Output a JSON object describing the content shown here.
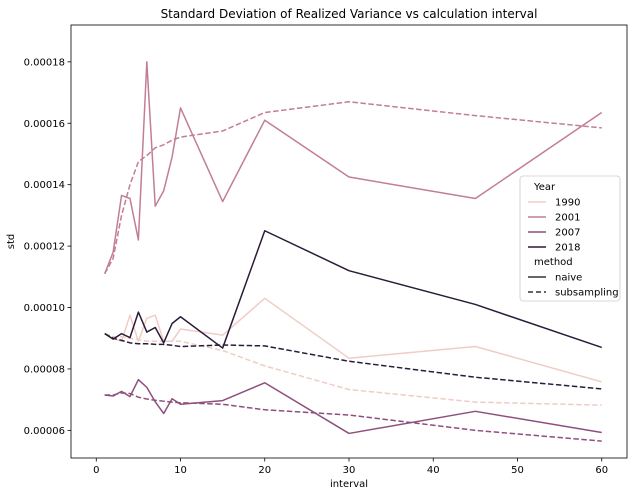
{
  "chart_data": {
    "type": "line",
    "title": "Standard Deviation of Realized Variance vs calculation interval",
    "xlabel": "interval",
    "ylabel": "std",
    "xlim": [
      -3.0,
      63.0
    ],
    "ylim": [
      5.1e-05,
      0.000192
    ],
    "xticks": [
      0,
      10,
      20,
      30,
      40,
      50,
      60
    ],
    "yticks": [
      6e-05,
      8e-05,
      0.0001,
      0.00012,
      0.00014,
      0.00016,
      0.00018
    ],
    "ytick_labels": [
      "0.00006",
      "0.00008",
      "0.00010",
      "0.00012",
      "0.00014",
      "0.00016",
      "0.00018"
    ],
    "grid": false,
    "legend": {
      "placement": "center-right",
      "hue_title": "Year",
      "style_title": "method",
      "hue_entries": [
        {
          "label": "1990",
          "color": "#efcdc6"
        },
        {
          "label": "2001",
          "color": "#c27e93"
        },
        {
          "label": "2007",
          "color": "#8e4f7e"
        },
        {
          "label": "2018",
          "color": "#2a1c39"
        }
      ],
      "style_entries": [
        {
          "label": "naive",
          "dash": "solid"
        },
        {
          "label": "subsampling",
          "dash": "dashed"
        }
      ]
    },
    "series": [
      {
        "year": "1990",
        "method": "naive",
        "color": "#efcdc6",
        "dash": "solid",
        "x": [
          1,
          2,
          3,
          4,
          5,
          6,
          7,
          8,
          9,
          10,
          15,
          20,
          30,
          45,
          60
        ],
        "y": [
          9.15e-05,
          9e-05,
          8.9e-05,
          9.75e-05,
          8.9e-05,
          9.65e-05,
          9.75e-05,
          8.9e-05,
          8.9e-05,
          9.3e-05,
          9.1e-05,
          0.000103,
          8.35e-05,
          8.73e-05,
          7.58e-05
        ]
      },
      {
        "year": "1990",
        "method": "subsampling",
        "color": "#efcdc6",
        "dash": "dashed",
        "x": [
          1,
          2,
          3,
          4,
          5,
          6,
          7,
          8,
          9,
          10,
          15,
          20,
          30,
          45,
          60
        ],
        "y": [
          9.15e-05,
          9.05e-05,
          9.05e-05,
          9e-05,
          8.95e-05,
          8.9e-05,
          8.9e-05,
          8.9e-05,
          8.9e-05,
          8.9e-05,
          8.6e-05,
          8.1e-05,
          7.33e-05,
          6.92e-05,
          6.82e-05
        ]
      },
      {
        "year": "2001",
        "method": "naive",
        "color": "#c27e93",
        "dash": "solid",
        "x": [
          1,
          2,
          3,
          4,
          5,
          6,
          7,
          8,
          9,
          10,
          15,
          20,
          30,
          45,
          60
        ],
        "y": [
          0.000111,
          0.000118,
          0.0001365,
          0.0001355,
          0.000122,
          0.00018,
          0.000133,
          0.000138,
          0.000149,
          0.000165,
          0.0001345,
          0.000161,
          0.0001425,
          0.0001355,
          0.0001635
        ]
      },
      {
        "year": "2001",
        "method": "subsampling",
        "color": "#c27e93",
        "dash": "dashed",
        "x": [
          1,
          2,
          3,
          4,
          5,
          6,
          7,
          8,
          9,
          10,
          15,
          20,
          30,
          45,
          60
        ],
        "y": [
          0.000111,
          0.000116,
          0.00013,
          0.00014,
          0.0001475,
          0.0001495,
          0.000152,
          0.000153,
          0.0001545,
          0.0001555,
          0.0001575,
          0.0001635,
          0.000167,
          0.0001625,
          0.0001585
        ]
      },
      {
        "year": "2007",
        "method": "naive",
        "color": "#8e4f7e",
        "dash": "solid",
        "x": [
          1,
          2,
          3,
          4,
          5,
          6,
          7,
          8,
          9,
          10,
          15,
          20,
          30,
          45,
          60
        ],
        "y": [
          7.15e-05,
          7.12e-05,
          7.27e-05,
          7.1e-05,
          7.65e-05,
          7.4e-05,
          6.93e-05,
          6.55e-05,
          7.03e-05,
          6.85e-05,
          6.97e-05,
          7.55e-05,
          5.9e-05,
          6.62e-05,
          5.93e-05
        ]
      },
      {
        "year": "2007",
        "method": "subsampling",
        "color": "#8e4f7e",
        "dash": "dashed",
        "x": [
          1,
          2,
          3,
          4,
          5,
          6,
          7,
          8,
          9,
          10,
          15,
          20,
          30,
          45,
          60
        ],
        "y": [
          7.15e-05,
          7.15e-05,
          7.22e-05,
          7.2e-05,
          7.08e-05,
          7.02e-05,
          6.98e-05,
          6.95e-05,
          6.92e-05,
          6.9e-05,
          6.85e-05,
          6.67e-05,
          6.5e-05,
          6e-05,
          5.65e-05
        ]
      },
      {
        "year": "2018",
        "method": "naive",
        "color": "#2a1c39",
        "dash": "solid",
        "x": [
          1,
          2,
          3,
          4,
          5,
          6,
          7,
          8,
          9,
          10,
          15,
          20,
          30,
          45,
          60
        ],
        "y": [
          9.15e-05,
          8.97e-05,
          9.15e-05,
          9.02e-05,
          9.85e-05,
          9.2e-05,
          9.35e-05,
          8.85e-05,
          9.48e-05,
          9.7e-05,
          8.68e-05,
          0.000125,
          0.000112,
          0.000101,
          8.7e-05
        ]
      },
      {
        "year": "2018",
        "method": "subsampling",
        "color": "#2a1c39",
        "dash": "dashed",
        "x": [
          1,
          2,
          3,
          4,
          5,
          6,
          7,
          8,
          9,
          10,
          15,
          20,
          30,
          45,
          60
        ],
        "y": [
          9.15e-05,
          9e-05,
          8.93e-05,
          8.85e-05,
          8.82e-05,
          8.82e-05,
          8.8e-05,
          8.8e-05,
          8.77e-05,
          8.73e-05,
          8.78e-05,
          8.75e-05,
          8.25e-05,
          7.73e-05,
          7.35e-05
        ]
      }
    ]
  }
}
